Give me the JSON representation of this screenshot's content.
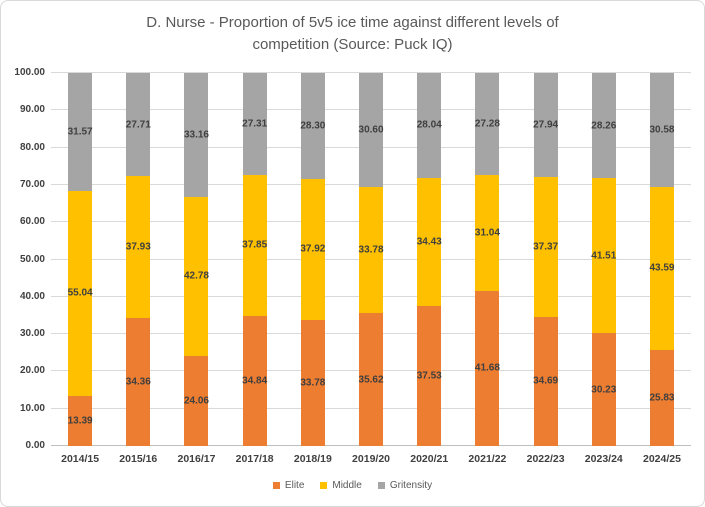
{
  "title": "D. Nurse - Proportion of 5v5 ice time against different levels of competition (Source: Puck IQ)",
  "title_lines": [
    "D. Nurse - Proportion of 5v5 ice time against different levels of",
    "competition (Source: Puck IQ)"
  ],
  "chart_data": {
    "type": "bar",
    "stacked": true,
    "categories": [
      "2014/15",
      "2015/16",
      "2016/17",
      "2017/18",
      "2018/19",
      "2019/20",
      "2020/21",
      "2021/22",
      "2022/23",
      "2023/24",
      "2024/25"
    ],
    "series": [
      {
        "name": "Elite",
        "color": "#ED7D31",
        "values": [
          13.39,
          34.36,
          24.06,
          34.84,
          33.78,
          35.62,
          37.53,
          41.68,
          34.69,
          30.23,
          25.83
        ]
      },
      {
        "name": "Middle",
        "color": "#FFC000",
        "values": [
          55.04,
          37.93,
          42.78,
          37.85,
          37.92,
          33.78,
          34.43,
          31.04,
          37.37,
          41.51,
          43.59
        ]
      },
      {
        "name": "Gritensity",
        "color": "#A5A5A5",
        "values": [
          31.57,
          27.71,
          33.16,
          27.31,
          28.3,
          30.6,
          28.04,
          27.28,
          27.94,
          28.26,
          30.58
        ]
      }
    ],
    "title": "D. Nurse - Proportion of 5v5 ice time against different levels of competition (Source: Puck IQ)",
    "xlabel": "",
    "ylabel": "",
    "ylim": [
      0,
      100
    ],
    "ytick_step": 10,
    "ytick_labels": [
      "0.00",
      "10.00",
      "20.00",
      "30.00",
      "40.00",
      "50.00",
      "60.00",
      "70.00",
      "80.00",
      "90.00",
      "100.00"
    ],
    "grid": true,
    "data_labels": true,
    "legend_position": "bottom",
    "legend_entries": [
      "Elite",
      "Middle",
      "Gritensity"
    ]
  },
  "colors": {
    "elite": "#ED7D31",
    "middle": "#FFC000",
    "gritensity": "#A5A5A5",
    "gridline": "#D9D9D9",
    "axis_line": "#BFBFBF",
    "title_text": "#595959",
    "label_text": "#404040"
  }
}
